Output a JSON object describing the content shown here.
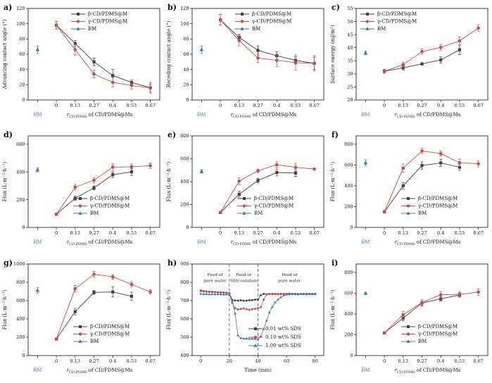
{
  "figure": {
    "background": "#ffffff",
    "axis_color": "#2b2b2b",
    "bm_label_color": "#4d7ebf"
  },
  "chart_data": [
    {
      "panel_label": "a)",
      "type": "line",
      "ylabel": "Advancing contact angle (°)",
      "xlabel_prefix": "r",
      "xlabel_sub": "CD-PDMS",
      "xlabel_rest": " of CD/PDMS@Ms",
      "categories": [
        "0",
        "0.13",
        "0.27",
        "0.4",
        "0.53",
        "0.67"
      ],
      "bm_category": "BM",
      "ylim": [
        0,
        120
      ],
      "yticks": [
        0,
        20,
        40,
        60,
        80,
        100,
        120
      ],
      "legend_pos": "top-right",
      "grid": false,
      "series": [
        {
          "name": "β-CD/PDMS@M",
          "marker": "square",
          "color": "#404040",
          "values": [
            98,
            74,
            50,
            32,
            23,
            16
          ],
          "errors": [
            5,
            4,
            5,
            8,
            3,
            5
          ]
        },
        {
          "name": "γ-CD/PDMS@M",
          "marker": "circle",
          "color": "#c0504d",
          "values": [
            98,
            66,
            34,
            23,
            19,
            16
          ],
          "errors": [
            5,
            7,
            5,
            6,
            5,
            7
          ]
        },
        {
          "name": "BM",
          "marker": "triangle",
          "color": "#4076b4",
          "bm_value": 66,
          "bm_error": 5
        }
      ]
    },
    {
      "panel_label": "b)",
      "type": "line",
      "ylabel": "Receding contact angle (°)",
      "xlabel_prefix": "r",
      "xlabel_sub": "CD-PDMS",
      "xlabel_rest": " of CD/PDMS@Ms",
      "categories": [
        "0",
        "0.13",
        "0.27",
        "0.4",
        "0.53",
        "0.67"
      ],
      "bm_category": "BM",
      "ylim": [
        0,
        120
      ],
      "yticks": [
        0,
        20,
        40,
        60,
        80,
        100,
        120
      ],
      "legend_pos": "top-right",
      "grid": false,
      "series": [
        {
          "name": "β-CD/PDMS@M",
          "marker": "square",
          "color": "#404040",
          "values": [
            105,
            82,
            65,
            58,
            52,
            48
          ],
          "errors": [
            7,
            4,
            6,
            5,
            5,
            8
          ]
        },
        {
          "name": "γ-CD/PDMS@M",
          "marker": "circle",
          "color": "#c0504d",
          "values": [
            105,
            78,
            55,
            52,
            49,
            48
          ],
          "errors": [
            7,
            7,
            6,
            8,
            10,
            10
          ]
        },
        {
          "name": "BM",
          "marker": "triangle",
          "color": "#4076b4",
          "bm_value": 66,
          "bm_error": 5
        }
      ]
    },
    {
      "panel_label": "c)",
      "type": "line",
      "ylabel": "Surface energy (mJ/m²)",
      "xlabel_prefix": "r",
      "xlabel_sub": "CD-PDMS",
      "xlabel_rest": " of CD/PDMS@Ms",
      "categories": [
        "0",
        "0.13",
        "0.27",
        "0.4",
        "0.53",
        "0.67"
      ],
      "bm_category": "BM",
      "ylim": [
        20,
        55
      ],
      "yticks": [
        20,
        25,
        30,
        35,
        40,
        45,
        50,
        55
      ],
      "legend_pos": "top-left",
      "grid": false,
      "series": [
        {
          "name": "β-CD/PDMS@M",
          "marker": "square",
          "color": "#404040",
          "values": [
            31,
            32.3,
            33.8,
            35.3,
            39.2,
            null
          ],
          "errors": [
            0.5,
            0.8,
            0.5,
            1.2,
            1.8,
            null
          ]
        },
        {
          "name": "γ-CD/PDMS@M",
          "marker": "circle",
          "color": "#c0504d",
          "values": [
            31,
            33.5,
            38.5,
            40.1,
            42.6,
            47.5
          ],
          "errors": [
            0.8,
            1,
            1,
            1.2,
            1.5,
            1.2
          ]
        },
        {
          "name": "BM",
          "marker": "triangle",
          "color": "#4076b4",
          "bm_value": 38,
          "bm_error": 0.8
        }
      ]
    },
    {
      "panel_label": "d)",
      "type": "line",
      "ylabel": "Flux (L·m⁻²·h⁻¹)",
      "xlabel_prefix": "r",
      "xlabel_sub": "CD-PDMS",
      "xlabel_rest": " of CD/PDMS@Ms",
      "categories": [
        "0",
        "0.13",
        "0.27",
        "0.4",
        "0.53",
        "0.67"
      ],
      "bm_category": "BM",
      "ylim": [
        0,
        660
      ],
      "yticks": [
        0,
        200,
        400,
        600
      ],
      "legend_pos": "bottom-right",
      "grid": false,
      "series": [
        {
          "name": "β-CD/PDMS@M",
          "marker": "square",
          "color": "#404040",
          "values": [
            95,
            210,
            285,
            380,
            400,
            null
          ],
          "errors": [
            8,
            15,
            15,
            20,
            25,
            null
          ]
        },
        {
          "name": "γ-CD/PDMS@M",
          "marker": "circle",
          "color": "#c0504d",
          "values": [
            95,
            290,
            340,
            435,
            437,
            445
          ],
          "errors": [
            8,
            20,
            20,
            25,
            20,
            20
          ]
        },
        {
          "name": "BM",
          "marker": "triangle",
          "color": "#4076b4",
          "bm_value": 415,
          "bm_error": 15
        }
      ]
    },
    {
      "panel_label": "e)",
      "type": "line",
      "ylabel": "Flux (L·m⁻²·h⁻¹)",
      "xlabel_prefix": "r",
      "xlabel_sub": "CD-PDMS",
      "xlabel_rest": " of CD/PDMS@Ms",
      "categories": [
        "0",
        "0.13",
        "0.27",
        "0.4",
        "0.53",
        "0.67"
      ],
      "bm_category": "BM",
      "ylim": [
        0,
        800
      ],
      "yticks": [
        0,
        200,
        400,
        600,
        800
      ],
      "legend_pos": "bottom-right",
      "grid": false,
      "series": [
        {
          "name": "β-CD/PDMS@M",
          "marker": "square",
          "color": "#404040",
          "values": [
            130,
            290,
            410,
            480,
            475,
            null
          ],
          "errors": [
            10,
            25,
            20,
            30,
            30,
            null
          ]
        },
        {
          "name": "γ-CD/PDMS@M",
          "marker": "circle",
          "color": "#c0504d",
          "values": [
            130,
            405,
            495,
            548,
            525,
            510
          ],
          "errors": [
            10,
            30,
            15,
            25,
            35,
            10
          ]
        },
        {
          "name": "BM",
          "marker": "triangle",
          "color": "#4076b4",
          "bm_value": 490,
          "bm_error": 15
        }
      ]
    },
    {
      "panel_label": "f)",
      "type": "line",
      "ylabel": "Flux (L·m⁻²·h⁻¹)",
      "xlabel_prefix": "r",
      "xlabel_sub": "CD-PDMS",
      "xlabel_rest": " of CD/PDMS@Ms",
      "categories": [
        "0",
        "0.13",
        "0.27",
        "0.4",
        "0.53",
        "0.67"
      ],
      "bm_category": "BM",
      "ylim": [
        0,
        880
      ],
      "yticks": [
        0,
        200,
        400,
        600,
        800
      ],
      "legend_pos": "bottom-right",
      "grid": false,
      "series": [
        {
          "name": "β-CD/PDMS@M",
          "marker": "square",
          "color": "#404040",
          "values": [
            150,
            400,
            595,
            620,
            578,
            null
          ],
          "errors": [
            12,
            30,
            35,
            35,
            30,
            null
          ]
        },
        {
          "name": "γ-CD/PDMS@M",
          "marker": "circle",
          "color": "#c0504d",
          "values": [
            150,
            570,
            735,
            710,
            622,
            612
          ],
          "errors": [
            12,
            40,
            25,
            25,
            35,
            30
          ]
        },
        {
          "name": "BM",
          "marker": "triangle",
          "color": "#4076b4",
          "bm_value": 620,
          "bm_error": 30
        }
      ]
    },
    {
      "panel_label": "g)",
      "type": "line",
      "ylabel": "Flux (L·m⁻²·h⁻¹)",
      "xlabel_prefix": "r",
      "xlabel_sub": "CD-PDMS",
      "xlabel_rest": " of CD/PDMS@Ms",
      "categories": [
        "0",
        "0.13",
        "0.27",
        "0.4",
        "0.53",
        "0.67"
      ],
      "bm_category": "BM",
      "ylim": [
        0,
        1000
      ],
      "yticks": [
        0,
        200,
        400,
        600,
        800,
        1000
      ],
      "legend_pos": "bottom-right",
      "grid": false,
      "series": [
        {
          "name": "β-CD/PDMS@M",
          "marker": "square",
          "color": "#404040",
          "values": [
            180,
            480,
            690,
            695,
            648,
            null
          ],
          "errors": [
            10,
            35,
            20,
            55,
            45,
            null
          ]
        },
        {
          "name": "γ-CD/PDMS@M",
          "marker": "circle",
          "color": "#c0504d",
          "values": [
            180,
            730,
            888,
            860,
            778,
            695
          ],
          "errors": [
            10,
            35,
            30,
            25,
            30,
            25
          ]
        },
        {
          "name": "BM",
          "marker": "triangle",
          "color": "#4076b4",
          "bm_value": 712,
          "bm_error": 30
        }
      ]
    },
    {
      "panel_label": "h)",
      "type": "line-time",
      "ylabel": "Flux (L·m⁻²·h⁻¹)",
      "xlabel": "Time (min)",
      "xlim": [
        -6,
        86
      ],
      "xticks": [
        0,
        20,
        40,
        60,
        80
      ],
      "ylim": [
        400,
        900
      ],
      "yticks": [
        400,
        500,
        600,
        700,
        800,
        900
      ],
      "dashed_lines_x": [
        20,
        40
      ],
      "annotations": [
        {
          "x": 10,
          "lines": [
            "Feed of",
            "pure water"
          ]
        },
        {
          "x": 30,
          "lines": [
            "Feed of",
            "SDS solution"
          ]
        },
        {
          "x": 62,
          "lines": [
            "Feed of",
            "pure water"
          ]
        }
      ],
      "legend_pos": "bottom-right",
      "grid": false,
      "x": [
        0,
        2,
        4,
        6,
        8,
        10,
        12,
        14,
        16,
        18,
        20,
        22,
        24,
        26,
        28,
        30,
        32,
        34,
        36,
        38,
        40,
        42,
        44,
        46,
        48,
        50,
        52,
        54,
        56,
        58,
        60,
        62,
        64,
        66,
        68,
        70,
        72,
        74,
        76,
        78,
        80
      ],
      "series": [
        {
          "name": "0.01 wt% SDS",
          "marker": "square",
          "color": "#404040",
          "values": [
            755,
            752,
            750,
            749,
            748,
            747,
            746,
            745,
            744,
            743,
            741,
            704,
            701,
            700,
            702,
            699,
            700,
            702,
            703,
            705,
            706,
            730,
            737,
            735,
            736,
            737,
            736,
            735,
            737,
            736,
            737,
            738,
            736,
            737,
            735,
            736,
            737,
            736,
            737,
            736,
            737
          ]
        },
        {
          "name": "0.10 wt% SDS",
          "marker": "circle",
          "color": "#c0504d",
          "values": [
            752,
            750,
            749,
            748,
            747,
            746,
            745,
            744,
            743,
            742,
            740,
            688,
            658,
            652,
            655,
            657,
            653,
            650,
            653,
            655,
            658,
            665,
            705,
            734,
            736,
            735,
            737,
            736,
            735,
            737,
            736,
            735,
            737,
            736,
            735,
            737,
            736,
            735,
            736,
            737,
            736
          ]
        },
        {
          "name": "1.00 wt% SDS",
          "marker": "triangle",
          "color": "#4076b4",
          "values": [
            737,
            735,
            736,
            734,
            735,
            734,
            735,
            734,
            733,
            734,
            732,
            700,
            630,
            510,
            495,
            492,
            493,
            491,
            492,
            490,
            488,
            505,
            545,
            590,
            635,
            665,
            690,
            705,
            718,
            728,
            733,
            735,
            736,
            735,
            736,
            735,
            736,
            737,
            736,
            735,
            736
          ]
        }
      ]
    },
    {
      "panel_label": "i)",
      "type": "line",
      "ylabel": "Flux (L·m⁻²·h⁻¹)",
      "xlabel_prefix": "r",
      "xlabel_sub": "CD-PDMS",
      "xlabel_rest": " of CD/PDMS@Ms",
      "categories": [
        "0",
        "0.13",
        "0.27",
        "0.4",
        "0.53",
        "0.67"
      ],
      "bm_category": "BM",
      "ylim": [
        0,
        880
      ],
      "yticks": [
        0,
        200,
        400,
        600,
        800
      ],
      "legend_pos": "bottom-right",
      "grid": false,
      "series": [
        {
          "name": "β-CD/PDMS@M",
          "marker": "square",
          "color": "#404040",
          "values": [
            218,
            360,
            505,
            545,
            582,
            null
          ],
          "errors": [
            10,
            25,
            30,
            20,
            20,
            null
          ]
        },
        {
          "name": "γ-CD/PDMS@M",
          "marker": "circle",
          "color": "#c0504d",
          "values": [
            218,
            392,
            510,
            585,
            588,
            610
          ],
          "errors": [
            10,
            30,
            25,
            30,
            25,
            30
          ]
        },
        {
          "name": "BM",
          "marker": "triangle",
          "color": "#4076b4",
          "bm_value": 598,
          "bm_error": 12
        }
      ]
    }
  ]
}
